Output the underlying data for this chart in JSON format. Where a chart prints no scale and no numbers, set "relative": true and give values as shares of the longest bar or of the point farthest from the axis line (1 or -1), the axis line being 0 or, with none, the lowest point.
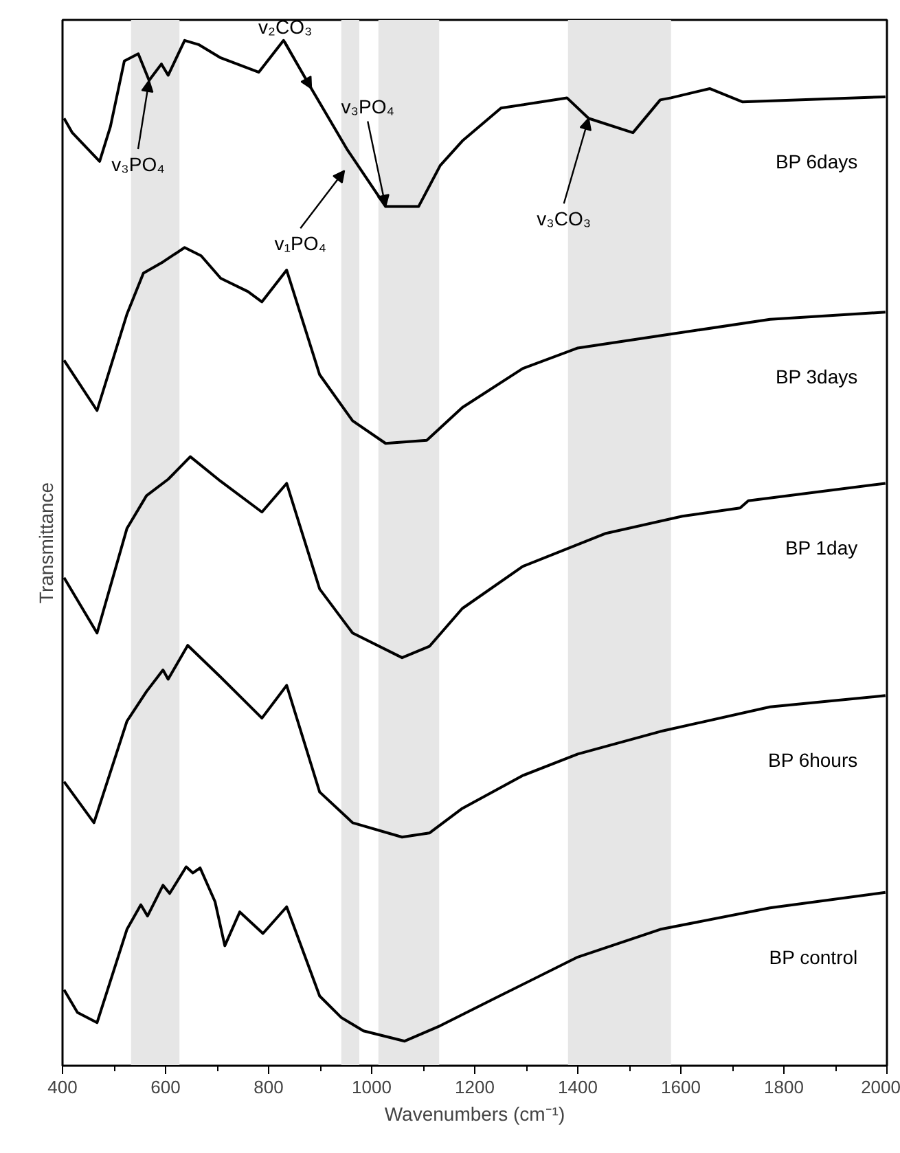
{
  "chart_data": {
    "type": "line",
    "relative": true,
    "xlabel": "Wavenumbers (cm⁻¹)",
    "ylabel": "Transmittance",
    "xlim": [
      400,
      2000
    ],
    "xticks": [
      400,
      600,
      800,
      1000,
      1200,
      1400,
      1600,
      1800,
      2000
    ],
    "grid": false,
    "marker": "none",
    "line_style": "solid",
    "series": [
      {
        "name": "BP 6days",
        "color": "#000000",
        "x": [
          403,
          419,
          472,
          493,
          520,
          547,
          568,
          592,
          605,
          637,
          664,
          707,
          781,
          829,
          883,
          952,
          1027,
          1091,
          1133,
          1176,
          1251,
          1379,
          1421,
          1507,
          1560,
          1581,
          1656,
          1720,
          1997
        ],
        "values": [
          0.924,
          0.91,
          0.882,
          0.916,
          0.98,
          0.987,
          0.961,
          0.977,
          0.966,
          1.0,
          0.996,
          0.983,
          0.969,
          1.0,
          0.953,
          0.894,
          0.838,
          0.838,
          0.878,
          0.902,
          0.934,
          0.944,
          0.924,
          0.91,
          0.942,
          0.944,
          0.953,
          0.94,
          0.945
        ]
      },
      {
        "name": "BP 3days",
        "color": "#000000",
        "x": [
          403,
          467,
          525,
          557,
          595,
          637,
          669,
          707,
          760,
          787,
          835,
          899,
          963,
          1027,
          1107,
          1176,
          1293,
          1400,
          1560,
          1773,
          1997
        ],
        "values": [
          0.688,
          0.639,
          0.733,
          0.773,
          0.784,
          0.798,
          0.79,
          0.768,
          0.755,
          0.745,
          0.776,
          0.674,
          0.629,
          0.607,
          0.61,
          0.642,
          0.68,
          0.7,
          0.712,
          0.728,
          0.735
        ]
      },
      {
        "name": "BP 1day",
        "color": "#000000",
        "x": [
          403,
          467,
          525,
          563,
          605,
          648,
          707,
          787,
          835,
          899,
          963,
          1059,
          1112,
          1176,
          1293,
          1453,
          1603,
          1715,
          1731,
          1997
        ],
        "values": [
          0.476,
          0.422,
          0.524,
          0.556,
          0.572,
          0.594,
          0.57,
          0.54,
          0.568,
          0.465,
          0.422,
          0.398,
          0.409,
          0.446,
          0.487,
          0.519,
          0.536,
          0.544,
          0.551,
          0.568
        ]
      },
      {
        "name": "BP 6hours",
        "color": "#000000",
        "x": [
          403,
          461,
          525,
          563,
          595,
          605,
          643,
          707,
          787,
          835,
          899,
          963,
          1059,
          1112,
          1176,
          1293,
          1400,
          1560,
          1773,
          1997
        ],
        "values": [
          0.277,
          0.237,
          0.336,
          0.365,
          0.386,
          0.377,
          0.41,
          0.379,
          0.339,
          0.371,
          0.267,
          0.237,
          0.223,
          0.227,
          0.251,
          0.283,
          0.304,
          0.326,
          0.35,
          0.361
        ]
      },
      {
        "name": "BP control",
        "color": "#000000",
        "x": [
          403,
          429,
          467,
          525,
          552,
          565,
          595,
          608,
          640,
          653,
          667,
          696,
          715,
          744,
          789,
          835,
          899,
          941,
          984,
          1064,
          1133,
          1240,
          1400,
          1560,
          1773,
          1997
        ],
        "values": [
          0.074,
          0.052,
          0.042,
          0.133,
          0.157,
          0.146,
          0.176,
          0.168,
          0.194,
          0.188,
          0.193,
          0.16,
          0.117,
          0.15,
          0.129,
          0.155,
          0.068,
          0.047,
          0.034,
          0.024,
          0.039,
          0.066,
          0.106,
          0.133,
          0.154,
          0.169
        ]
      }
    ],
    "bands": [
      {
        "axis": "x",
        "from": 533,
        "to": 627,
        "color": "#e6e6e6"
      },
      {
        "axis": "x",
        "from": 941,
        "to": 976,
        "color": "#e6e6e6"
      },
      {
        "axis": "x",
        "from": 1013,
        "to": 1131,
        "color": "#e6e6e6"
      },
      {
        "axis": "x",
        "from": 1381,
        "to": 1581,
        "color": "#e6e6e6"
      }
    ],
    "annotations": [
      {
        "text": "v₃PO₄",
        "x": 568,
        "y": 0.961
      },
      {
        "text": "v₂CO₃",
        "x": 883,
        "y": 0.953
      },
      {
        "text": "v₁PO₄",
        "x": 947,
        "y": 0.873
      },
      {
        "text": "v₃PO₄",
        "x": 1027,
        "y": 0.838
      },
      {
        "text": "v₃CO₃",
        "x": 1421,
        "y": 0.924
      }
    ]
  }
}
